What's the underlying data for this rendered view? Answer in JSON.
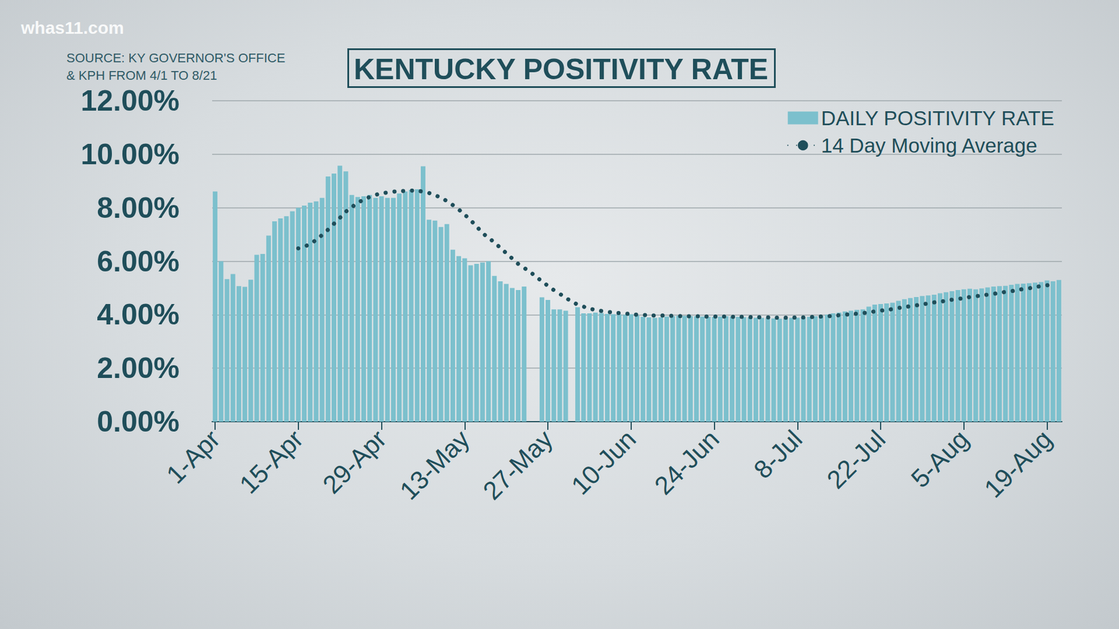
{
  "chart_data": {
    "type": "bar",
    "title": "KENTUCKY POSITIVITY RATE",
    "source": "SOURCE: KY GOVERNOR'S OFFICE\n& KPH FROM 4/1 TO 8/21",
    "watermark": "whas11.com",
    "categories": [
      "1-Apr",
      null,
      null,
      null,
      null,
      null,
      null,
      null,
      null,
      null,
      null,
      null,
      null,
      null,
      "15-Apr",
      null,
      null,
      null,
      null,
      null,
      null,
      null,
      null,
      null,
      null,
      null,
      null,
      null,
      "29-Apr",
      null,
      null,
      null,
      null,
      null,
      null,
      null,
      null,
      null,
      null,
      null,
      null,
      null,
      "13-May",
      null,
      null,
      null,
      null,
      null,
      null,
      null,
      null,
      null,
      null,
      null,
      null,
      null,
      "27-May",
      null,
      null,
      null,
      null,
      null,
      null,
      null,
      null,
      null,
      null,
      null,
      null,
      null,
      "10-Jun",
      null,
      null,
      null,
      null,
      null,
      null,
      null,
      null,
      null,
      null,
      null,
      null,
      null,
      "24-Jun",
      null,
      null,
      null,
      null,
      null,
      null,
      null,
      null,
      null,
      null,
      null,
      null,
      null,
      "8-Jul",
      null,
      null,
      null,
      null,
      null,
      null,
      null,
      null,
      null,
      null,
      null,
      null,
      null,
      "22-Jul",
      null,
      null,
      null,
      null,
      null,
      null,
      null,
      null,
      null,
      null,
      null,
      null,
      null,
      "5-Aug",
      null,
      null,
      null,
      null,
      null,
      null,
      null,
      null,
      null,
      null,
      null,
      null,
      null,
      "19-Aug",
      null,
      null
    ],
    "series": [
      {
        "name": "DAILY POSITIVITY RATE",
        "type": "bar",
        "color": "#7cc0cd",
        "values": [
          8.61,
          6.0,
          5.33,
          5.52,
          5.07,
          5.04,
          5.31,
          6.24,
          6.27,
          6.96,
          7.49,
          7.6,
          7.68,
          7.87,
          8.0,
          8.08,
          8.19,
          8.24,
          8.37,
          9.17,
          9.28,
          9.57,
          9.36,
          8.48,
          8.4,
          8.43,
          8.48,
          8.37,
          8.43,
          8.37,
          8.37,
          8.53,
          8.61,
          8.67,
          8.69,
          9.55,
          7.55,
          7.52,
          7.28,
          7.39,
          6.43,
          6.19,
          6.11,
          5.85,
          5.9,
          5.95,
          6.0,
          5.45,
          5.25,
          5.15,
          5.0,
          4.92,
          5.05,
          null,
          null,
          4.65,
          4.55,
          4.2,
          4.2,
          4.15,
          null,
          4.28,
          4.05,
          4.05,
          4.08,
          4.06,
          4.03,
          4.02,
          4.01,
          4.0,
          4.02,
          3.98,
          3.92,
          3.9,
          3.88,
          3.9,
          3.93,
          3.95,
          3.96,
          3.96,
          3.95,
          3.94,
          3.93,
          3.92,
          3.92,
          3.93,
          3.94,
          3.93,
          3.92,
          3.91,
          3.9,
          3.89,
          3.88,
          3.87,
          3.86,
          3.85,
          3.86,
          3.88,
          3.89,
          3.9,
          3.92,
          3.94,
          3.96,
          4.0,
          4.05,
          4.08,
          4.12,
          4.15,
          4.18,
          4.2,
          4.3,
          4.38,
          4.4,
          4.42,
          4.45,
          4.52,
          4.58,
          4.62,
          4.66,
          4.7,
          4.72,
          4.75,
          4.8,
          4.84,
          4.88,
          4.92,
          4.95,
          4.97,
          4.95,
          4.98,
          5.02,
          5.05,
          5.07,
          5.08,
          5.12,
          5.15,
          5.16,
          5.18,
          5.2,
          5.22,
          5.28,
          5.25,
          5.3
        ]
      },
      {
        "name": "14 Day Moving Average",
        "type": "line",
        "color": "#1f4e5a",
        "line_style": "dotted",
        "marker": "none",
        "values": [
          null,
          null,
          null,
          null,
          null,
          null,
          null,
          null,
          null,
          null,
          null,
          null,
          null,
          null,
          6.48,
          6.55,
          6.65,
          6.8,
          6.98,
          7.18,
          7.4,
          7.62,
          7.85,
          8.02,
          8.18,
          8.3,
          8.4,
          8.48,
          8.53,
          8.57,
          8.6,
          8.62,
          8.63,
          8.64,
          8.63,
          8.6,
          8.55,
          8.47,
          8.37,
          8.25,
          8.1,
          7.93,
          7.74,
          7.53,
          7.3,
          7.06,
          6.88,
          6.7,
          6.5,
          6.3,
          6.1,
          5.9,
          5.75,
          5.6,
          5.42,
          5.25,
          5.08,
          4.92,
          4.78,
          4.63,
          4.5,
          4.38,
          4.3,
          4.23,
          4.18,
          4.14,
          4.11,
          4.08,
          4.06,
          4.04,
          4.02,
          4.0,
          3.99,
          3.98,
          3.97,
          3.97,
          3.96,
          3.96,
          3.95,
          3.95,
          3.94,
          3.94,
          3.94,
          3.93,
          3.93,
          3.93,
          3.93,
          3.92,
          3.92,
          3.92,
          3.91,
          3.91,
          3.9,
          3.9,
          3.89,
          3.89,
          3.89,
          3.89,
          3.9,
          3.9,
          3.91,
          3.92,
          3.93,
          3.94,
          3.96,
          3.98,
          4.0,
          4.02,
          4.04,
          4.06,
          4.09,
          4.12,
          4.15,
          4.18,
          4.21,
          4.25,
          4.28,
          4.32,
          4.35,
          4.39,
          4.42,
          4.46,
          4.49,
          4.52,
          4.56,
          4.59,
          4.62,
          4.66,
          4.69,
          4.72,
          4.75,
          4.78,
          4.82,
          4.85,
          4.88,
          4.92,
          4.96,
          4.99,
          5.03,
          5.07,
          5.1,
          5.14,
          null
        ]
      }
    ],
    "ylim": [
      0,
      12
    ],
    "yticks": [
      {
        "value": 0,
        "label": "0.00%"
      },
      {
        "value": 2,
        "label": "2.00%"
      },
      {
        "value": 4,
        "label": "4.00%"
      },
      {
        "value": 6,
        "label": "6.00%"
      },
      {
        "value": 8,
        "label": "8.00%"
      },
      {
        "value": 10,
        "label": "10.00%"
      },
      {
        "value": 12,
        "label": "12.00%"
      }
    ],
    "grid": true,
    "legend": "upper right"
  }
}
